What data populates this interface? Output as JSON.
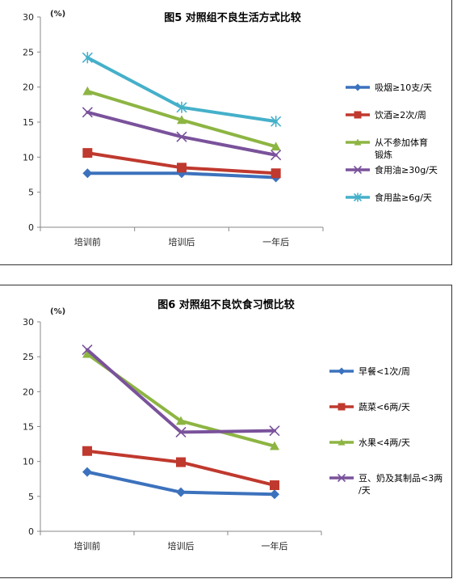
{
  "chart_data": [
    {
      "type": "line",
      "title": "图5 对照组不良生活方式比较",
      "ylabel": "(%)",
      "xlabel": "",
      "categories": [
        "培训前",
        "培训后",
        "一年后"
      ],
      "ylim": [
        0,
        30
      ],
      "yticks": [
        0,
        5,
        10,
        15,
        20,
        25,
        30
      ],
      "grid": false,
      "legend_position": "right",
      "series": [
        {
          "name": "吸烟≥10支/天",
          "values": [
            7.7,
            7.7,
            7.1
          ],
          "color": "#3c72bd",
          "marker": "diamond"
        },
        {
          "name": "饮酒≥2次/周",
          "values": [
            10.6,
            8.5,
            7.7
          ],
          "color": "#c0392e",
          "marker": "square"
        },
        {
          "name": "从不参加体育锻炼",
          "values": [
            19.4,
            15.3,
            11.5
          ],
          "color": "#8db543",
          "marker": "triangle"
        },
        {
          "name": "食用油≥30g/天",
          "values": [
            16.4,
            12.9,
            10.3
          ],
          "color": "#7a529b",
          "marker": "x"
        },
        {
          "name": "食用盐≥6g/天",
          "values": [
            24.2,
            17.1,
            15.1
          ],
          "color": "#45b0ca",
          "marker": "star"
        }
      ]
    },
    {
      "type": "line",
      "title": "图6 对照组不良饮食习惯比较",
      "ylabel": "(%)",
      "xlabel": "",
      "categories": [
        "培训前",
        "培训后",
        "一年后"
      ],
      "ylim": [
        0,
        30
      ],
      "yticks": [
        0,
        5,
        10,
        15,
        20,
        25,
        30
      ],
      "grid": false,
      "legend_position": "right",
      "series": [
        {
          "name": "早餐<1次/周",
          "values": [
            8.5,
            5.6,
            5.3
          ],
          "color": "#3c72bd",
          "marker": "diamond"
        },
        {
          "name": "蔬菜<6两/天",
          "values": [
            11.5,
            9.9,
            6.6
          ],
          "color": "#c0392e",
          "marker": "square"
        },
        {
          "name": "水果<4两/天",
          "values": [
            25.4,
            15.8,
            12.2
          ],
          "color": "#8db543",
          "marker": "triangle"
        },
        {
          "name": "豆、奶及其制品<3两/天",
          "values": [
            26.0,
            14.2,
            14.4
          ],
          "color": "#7a529b",
          "marker": "x"
        }
      ]
    }
  ]
}
